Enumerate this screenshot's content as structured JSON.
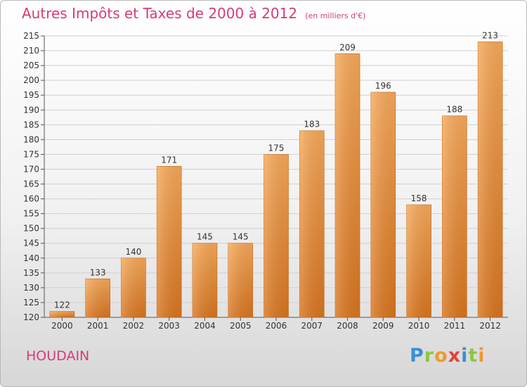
{
  "chart_data": {
    "type": "bar",
    "title": "Autres Impôts et Taxes de 2000 à 2012",
    "unit": "(en milliers d'€)",
    "categories": [
      "2000",
      "2001",
      "2002",
      "2003",
      "2004",
      "2005",
      "2006",
      "2007",
      "2008",
      "2009",
      "2010",
      "2011",
      "2012"
    ],
    "values": [
      122,
      133,
      140,
      171,
      145,
      145,
      175,
      183,
      209,
      196,
      158,
      188,
      213
    ],
    "ylim": [
      120,
      215
    ],
    "yticks": [
      120,
      125,
      130,
      135,
      140,
      145,
      150,
      155,
      160,
      165,
      170,
      175,
      180,
      185,
      190,
      195,
      200,
      205,
      210,
      215
    ],
    "grid": true,
    "legend": "none",
    "colors": {
      "bar_top": "#f7a95a",
      "bar_bottom": "#d9751f",
      "text": "#d63a7a"
    }
  },
  "footer": {
    "town": "HOUDAIN",
    "brand_letters": [
      {
        "ch": "P",
        "color": "#3a8fd6"
      },
      {
        "ch": "r",
        "color": "#8ec641"
      },
      {
        "ch": "o",
        "color": "#f09a2a"
      },
      {
        "ch": "x",
        "color": "#e0443a"
      },
      {
        "ch": "i",
        "color": "#3a8fd6"
      },
      {
        "ch": "t",
        "color": "#8ec641"
      },
      {
        "ch": "i",
        "color": "#f09a2a"
      }
    ]
  }
}
